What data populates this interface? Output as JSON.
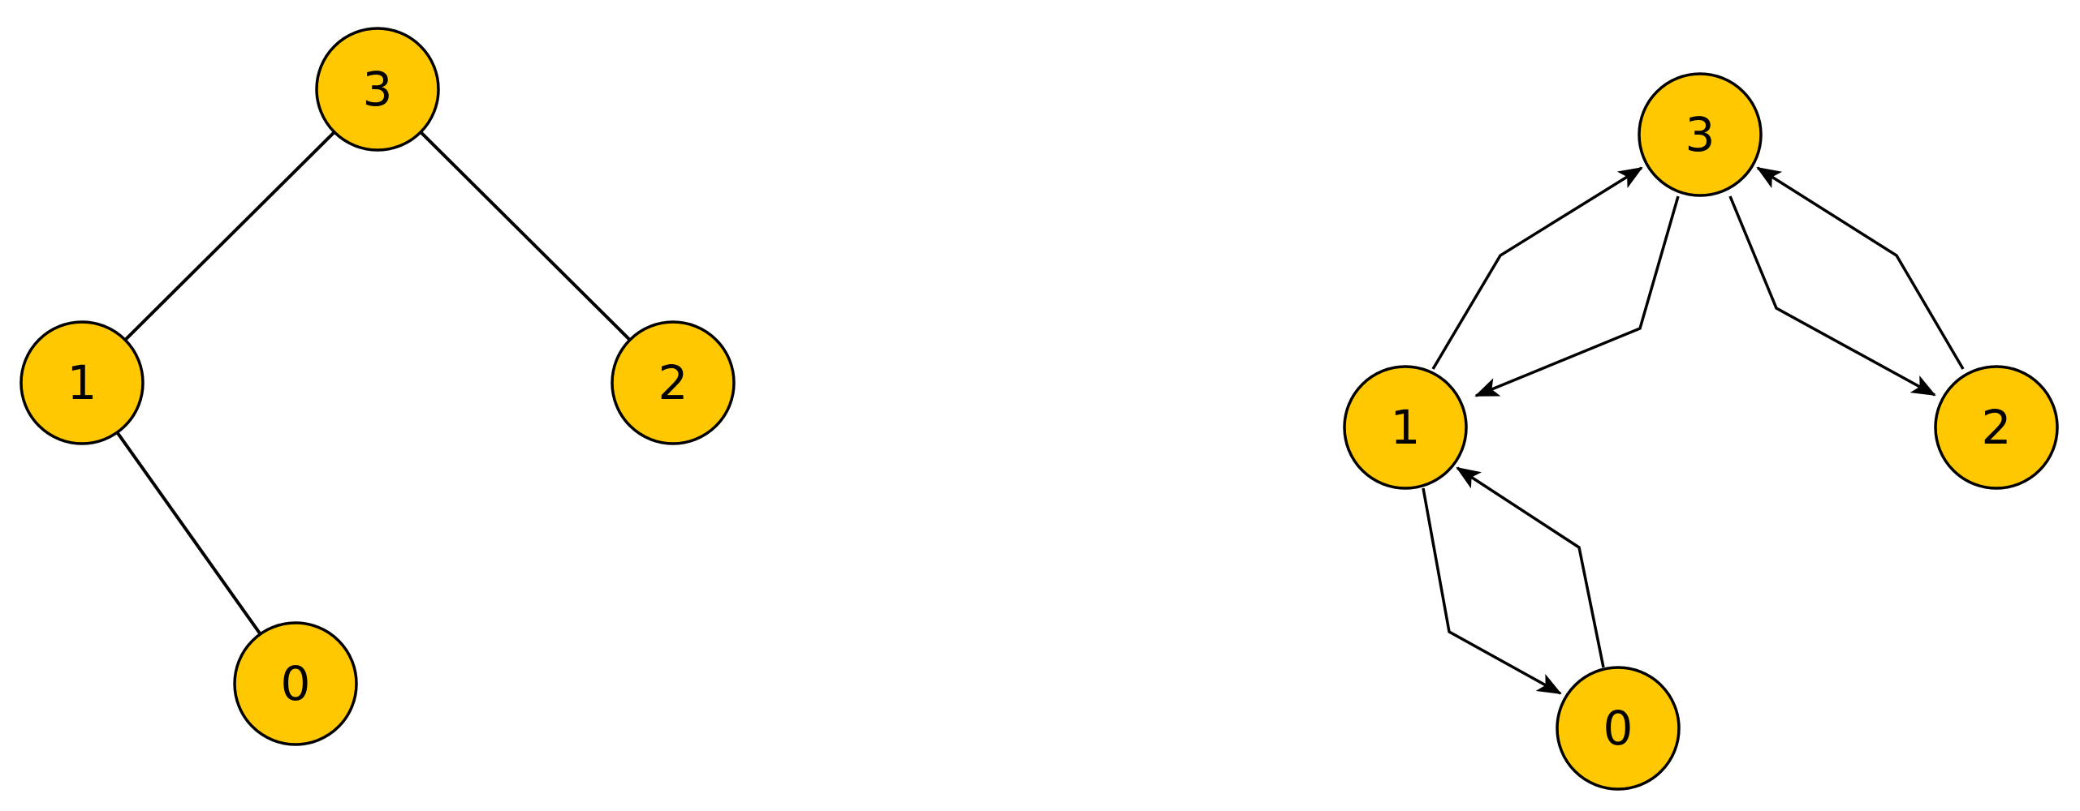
{
  "colors": {
    "node_fill": "#FFC800",
    "node_stroke": "#000000",
    "edge_stroke": "#000000",
    "label": "#000000"
  },
  "left_tree": {
    "nodes": [
      {
        "id": "3",
        "label": "3"
      },
      {
        "id": "1",
        "label": "1"
      },
      {
        "id": "2",
        "label": "2"
      },
      {
        "id": "0",
        "label": "0"
      }
    ],
    "edges": [
      {
        "from": "3",
        "to": "1"
      },
      {
        "from": "3",
        "to": "2"
      },
      {
        "from": "1",
        "to": "0"
      }
    ]
  },
  "right_graph": {
    "nodes": [
      {
        "id": "3",
        "label": "3"
      },
      {
        "id": "1",
        "label": "1"
      },
      {
        "id": "2",
        "label": "2"
      },
      {
        "id": "0",
        "label": "0"
      }
    ],
    "edges": [
      {
        "from": "1",
        "to": "3",
        "directed": true
      },
      {
        "from": "3",
        "to": "1",
        "directed": true
      },
      {
        "from": "3",
        "to": "2",
        "directed": true
      },
      {
        "from": "2",
        "to": "3",
        "directed": true
      },
      {
        "from": "1",
        "to": "0",
        "directed": true
      },
      {
        "from": "0",
        "to": "1",
        "directed": true
      }
    ]
  }
}
